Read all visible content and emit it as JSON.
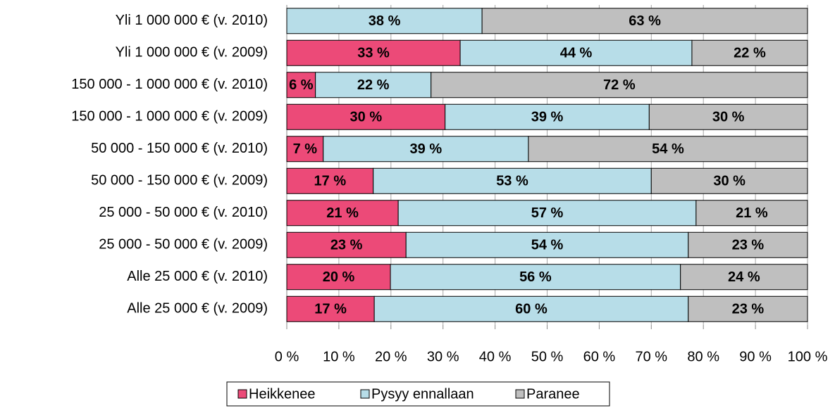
{
  "chart_data": {
    "type": "stacked-bar-horizontal",
    "categories": [
      "Yli 1 000 000 € (v. 2010)",
      "Yli 1 000 000 € (v. 2009)",
      "150 000 - 1 000 000 € (v. 2010)",
      "150 000 - 1 000 000 € (v. 2009)",
      "50 000 - 150 000 € (v. 2010)",
      "50 000 - 150 000 € (v. 2009)",
      "25 000 - 50 000 € (v. 2010)",
      "25 000 - 50 000 € (v. 2009)",
      "Alle 25 000 € (v. 2010)",
      "Alle 25 000 €  (v. 2009)"
    ],
    "series": [
      {
        "name": "Heikkenee",
        "color": "#ec4a78",
        "values": [
          0,
          33.3,
          5.5,
          30.4,
          7.0,
          16.6,
          21.4,
          22.9,
          19.9,
          16.8
        ],
        "value_labels": [
          null,
          "33 %",
          "6 %",
          "30 %",
          "7 %",
          "17 %",
          "21 %",
          "23 %",
          "20 %",
          "17 %"
        ]
      },
      {
        "name": "Pysyy ennallaan",
        "color": "#b7dde8",
        "values": [
          37.5,
          44.5,
          22.2,
          39.2,
          39.4,
          53.4,
          57.2,
          54.2,
          55.7,
          60.3
        ],
        "value_labels": [
          "38 %",
          "44 %",
          "22 %",
          "39 %",
          "39 %",
          "53 %",
          "57 %",
          "54 %",
          "56 %",
          "60 %"
        ]
      },
      {
        "name": "Paranee",
        "color": "#bfbfbf",
        "values": [
          62.5,
          22.2,
          72.3,
          30.4,
          53.6,
          30.0,
          21.4,
          22.9,
          24.4,
          22.9
        ],
        "value_labels": [
          "63 %",
          "22 %",
          "72 %",
          "30 %",
          "54 %",
          "30 %",
          "21 %",
          "23 %",
          "24 %",
          "23 %"
        ]
      }
    ],
    "xlim": [
      0,
      100
    ],
    "xticks": [
      {
        "value": 0,
        "label": "0 %"
      },
      {
        "value": 10,
        "label": "10 %"
      },
      {
        "value": 20,
        "label": "20 %"
      },
      {
        "value": 30,
        "label": "30 %"
      },
      {
        "value": 40,
        "label": "40 %"
      },
      {
        "value": 50,
        "label": "50 %"
      },
      {
        "value": 60,
        "label": "60 %"
      },
      {
        "value": 70,
        "label": "70 %"
      },
      {
        "value": 80,
        "label": "80 %"
      },
      {
        "value": 90,
        "label": "90 %"
      },
      {
        "value": 100,
        "label": "100 %"
      }
    ],
    "grid": true,
    "legend": "bottom"
  }
}
